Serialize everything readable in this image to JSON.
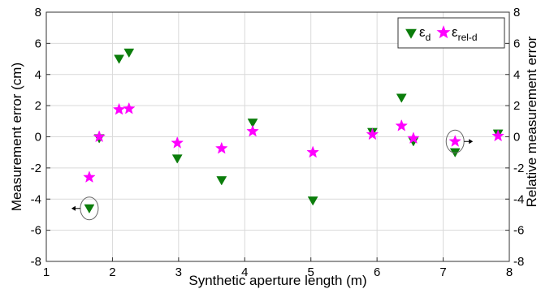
{
  "chart_data": {
    "type": "scatter",
    "xlabel": "Synthetic aperture length (m)",
    "ylabel": "Measurement error (cm)",
    "y2label": "Relative measurement error",
    "xlim": [
      1,
      8
    ],
    "ylim": [
      -8,
      8
    ],
    "y2lim": [
      -8,
      8
    ],
    "xticks": [
      1,
      2,
      3,
      4,
      5,
      6,
      7,
      8
    ],
    "yticks": [
      -8,
      -6,
      -4,
      -2,
      0,
      2,
      4,
      6,
      8
    ],
    "y2ticks": [
      -8,
      -6,
      -4,
      -2,
      0,
      2,
      4,
      6,
      8
    ],
    "grid": true,
    "legend": "top-right",
    "series": [
      {
        "name": "ε_d",
        "legend_main": "ε",
        "legend_sub": "d",
        "marker": "triangle-down",
        "color": "#0b7d0b",
        "axis": "left",
        "x": [
          1.65,
          1.8,
          2.1,
          2.25,
          2.98,
          3.65,
          4.12,
          5.03,
          5.93,
          6.37,
          6.55,
          7.18,
          7.83
        ],
        "y": [
          -4.6,
          -0.1,
          5.0,
          5.4,
          -1.4,
          -2.8,
          0.9,
          -4.1,
          0.3,
          2.5,
          -0.3,
          -1.0,
          0.2
        ]
      },
      {
        "name": "ε_rel-d",
        "legend_main": "ε",
        "legend_sub": "rel-d",
        "marker": "star",
        "color": "#ff00ff",
        "axis": "right",
        "x": [
          1.65,
          1.8,
          2.1,
          2.25,
          2.98,
          3.65,
          4.12,
          5.03,
          5.93,
          6.37,
          6.55,
          7.18,
          7.83
        ],
        "y": [
          -2.6,
          0.0,
          1.75,
          1.8,
          -0.4,
          -0.75,
          0.35,
          -1.0,
          0.15,
          0.7,
          -0.1,
          -0.3,
          0.05
        ]
      }
    ],
    "annotations": [
      {
        "type": "ellipse-arrow",
        "x": 1.65,
        "y": -4.6,
        "direction": "left",
        "axis": "left"
      },
      {
        "type": "ellipse-arrow",
        "x": 7.18,
        "y": -0.3,
        "direction": "right",
        "axis": "right"
      }
    ]
  }
}
